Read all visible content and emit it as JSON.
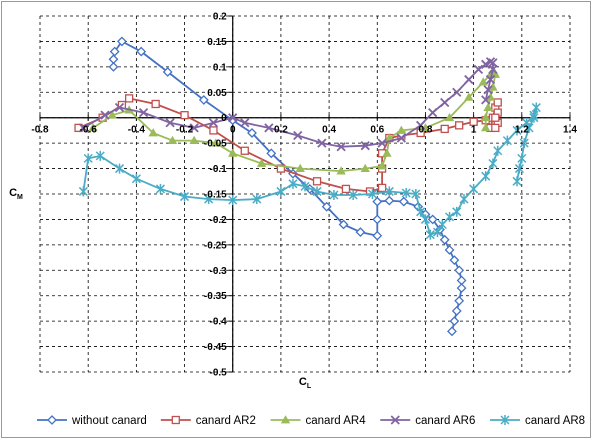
{
  "chart_data": {
    "type": "line",
    "xlabel": {
      "main": "C",
      "sub": "L"
    },
    "ylabel": {
      "main": "C",
      "sub": "M"
    },
    "xlim": [
      -0.8,
      1.4
    ],
    "ylim": [
      -0.5,
      0.2
    ],
    "x_ticks": [
      -0.8,
      -0.6,
      -0.4,
      -0.2,
      0,
      0.2,
      0.4,
      0.6,
      0.8,
      1,
      1.2,
      1.4
    ],
    "y_ticks": [
      0.2,
      0.15,
      0.1,
      0.05,
      0,
      -0.05,
      -0.1,
      -0.15,
      -0.2,
      -0.25,
      -0.3,
      -0.35,
      -0.4,
      -0.45,
      -0.5
    ],
    "x_tick_labels": [
      "-0.8",
      "-0.6",
      "-0.4",
      "-0.2",
      "0",
      "0.2",
      "0.4",
      "0.6",
      "0.8",
      "1",
      "1.2",
      "1.4"
    ],
    "y_tick_labels": [
      "0.2",
      "0.15",
      "0.1",
      "0.05",
      "0",
      "-0.05",
      "-0.1",
      "-0.15",
      "-0.2",
      "-0.25",
      "-0.3",
      "-0.35",
      "-0.4",
      "-0.45",
      "-0.5"
    ],
    "grid": "dashed",
    "legend_position": "bottom",
    "series": [
      {
        "name": "without canard",
        "color": "#4472C4",
        "marker": "diamond",
        "points": [
          [
            -0.495,
            0.1
          ],
          [
            -0.495,
            0.115
          ],
          [
            -0.49,
            0.13
          ],
          [
            -0.46,
            0.15
          ],
          [
            -0.38,
            0.13
          ],
          [
            -0.27,
            0.09
          ],
          [
            -0.12,
            0.035
          ],
          [
            0,
            -0.005
          ],
          [
            0.08,
            -0.03
          ],
          [
            0.16,
            -0.07
          ],
          [
            0.25,
            -0.11
          ],
          [
            0.32,
            -0.14
          ],
          [
            0.39,
            -0.175
          ],
          [
            0.46,
            -0.21
          ],
          [
            0.53,
            -0.225
          ],
          [
            0.6,
            -0.232
          ],
          [
            0.6,
            -0.2
          ],
          [
            0.6,
            -0.165
          ],
          [
            0.65,
            -0.163
          ],
          [
            0.71,
            -0.165
          ],
          [
            0.77,
            -0.175
          ],
          [
            0.8,
            -0.19
          ],
          [
            0.83,
            -0.2
          ],
          [
            0.86,
            -0.22
          ],
          [
            0.88,
            -0.24
          ],
          [
            0.9,
            -0.26
          ],
          [
            0.92,
            -0.28
          ],
          [
            0.94,
            -0.3
          ],
          [
            0.95,
            -0.32
          ],
          [
            0.95,
            -0.335
          ],
          [
            0.94,
            -0.36
          ],
          [
            0.93,
            -0.38
          ],
          [
            0.92,
            -0.4
          ],
          [
            0.91,
            -0.42
          ]
        ]
      },
      {
        "name": "canard AR2",
        "color": "#C0504D",
        "marker": "square",
        "points": [
          [
            -0.64,
            -0.02
          ],
          [
            -0.54,
            0.0
          ],
          [
            -0.46,
            0.025
          ],
          [
            -0.43,
            0.038
          ],
          [
            -0.32,
            0.027
          ],
          [
            -0.2,
            0.005
          ],
          [
            -0.08,
            -0.025
          ],
          [
            0.05,
            -0.065
          ],
          [
            0.2,
            -0.1
          ],
          [
            0.35,
            -0.125
          ],
          [
            0.47,
            -0.14
          ],
          [
            0.57,
            -0.145
          ],
          [
            0.62,
            -0.138
          ],
          [
            0.62,
            -0.1
          ],
          [
            0.62,
            -0.07
          ],
          [
            0.65,
            -0.04
          ],
          [
            0.7,
            -0.035
          ],
          [
            0.78,
            -0.03
          ],
          [
            0.88,
            -0.022
          ],
          [
            0.94,
            -0.015
          ],
          [
            1.0,
            -0.008
          ],
          [
            1.05,
            -0.005
          ],
          [
            1.07,
            -0.02
          ],
          [
            1.08,
            0.0
          ],
          [
            1.09,
            0.02
          ],
          [
            1.1,
            0.03
          ],
          [
            1.1,
            0.01
          ],
          [
            1.1,
            -0.01
          ],
          [
            1.09,
            -0.02
          ],
          [
            1.09,
            0.0
          ]
        ]
      },
      {
        "name": "canard AR4",
        "color": "#9BBB59",
        "marker": "triangle",
        "points": [
          [
            -0.58,
            -0.02
          ],
          [
            -0.5,
            0.005
          ],
          [
            -0.43,
            0.015
          ],
          [
            -0.33,
            -0.03
          ],
          [
            -0.25,
            -0.045
          ],
          [
            -0.16,
            -0.045
          ],
          [
            -0.07,
            -0.05
          ],
          [
            0.0,
            -0.07
          ],
          [
            0.12,
            -0.09
          ],
          [
            0.28,
            -0.1
          ],
          [
            0.45,
            -0.105
          ],
          [
            0.55,
            -0.1
          ],
          [
            0.62,
            -0.095
          ],
          [
            0.64,
            -0.07
          ],
          [
            0.65,
            -0.04
          ],
          [
            0.7,
            -0.025
          ],
          [
            0.8,
            -0.02
          ],
          [
            0.9,
            0.0
          ],
          [
            0.98,
            0.04
          ],
          [
            1.04,
            0.07
          ],
          [
            1.07,
            0.085
          ],
          [
            1.085,
            0.09
          ],
          [
            1.09,
            0.085
          ],
          [
            1.08,
            0.06
          ],
          [
            1.07,
            0.04
          ],
          [
            1.06,
            0.02
          ],
          [
            1.05,
            0.0
          ],
          [
            1.05,
            -0.02
          ]
        ]
      },
      {
        "name": "canard AR6",
        "color": "#8064A2",
        "marker": "x",
        "points": [
          [
            -0.62,
            -0.02
          ],
          [
            -0.53,
            0.005
          ],
          [
            -0.47,
            0.02
          ],
          [
            -0.37,
            0.01
          ],
          [
            -0.26,
            -0.01
          ],
          [
            -0.16,
            -0.02
          ],
          [
            -0.08,
            -0.01
          ],
          [
            0.0,
            0.0
          ],
          [
            0.05,
            -0.01
          ],
          [
            0.15,
            -0.02
          ],
          [
            0.27,
            -0.035
          ],
          [
            0.37,
            -0.05
          ],
          [
            0.45,
            -0.057
          ],
          [
            0.55,
            -0.055
          ],
          [
            0.62,
            -0.05
          ],
          [
            0.7,
            -0.04
          ],
          [
            0.78,
            -0.015
          ],
          [
            0.83,
            0.01
          ],
          [
            0.88,
            0.03
          ],
          [
            0.93,
            0.05
          ],
          [
            0.98,
            0.075
          ],
          [
            1.02,
            0.095
          ],
          [
            1.05,
            0.105
          ],
          [
            1.07,
            0.11
          ],
          [
            1.08,
            0.108
          ],
          [
            1.08,
            0.095
          ],
          [
            1.07,
            0.075
          ],
          [
            1.06,
            0.055
          ],
          [
            1.05,
            0.035
          ]
        ]
      },
      {
        "name": "canard AR8",
        "color": "#4BACC6",
        "marker": "star",
        "points": [
          [
            -0.62,
            -0.145
          ],
          [
            -0.6,
            -0.08
          ],
          [
            -0.55,
            -0.075
          ],
          [
            -0.47,
            -0.1
          ],
          [
            -0.4,
            -0.12
          ],
          [
            -0.3,
            -0.14
          ],
          [
            -0.2,
            -0.155
          ],
          [
            -0.1,
            -0.16
          ],
          [
            0.0,
            -0.162
          ],
          [
            0.1,
            -0.16
          ],
          [
            0.2,
            -0.145
          ],
          [
            0.25,
            -0.13
          ],
          [
            0.3,
            -0.135
          ],
          [
            0.35,
            -0.145
          ],
          [
            0.42,
            -0.152
          ],
          [
            0.5,
            -0.152
          ],
          [
            0.58,
            -0.15
          ],
          [
            0.65,
            -0.145
          ],
          [
            0.72,
            -0.148
          ],
          [
            0.76,
            -0.15
          ],
          [
            0.78,
            -0.185
          ],
          [
            0.8,
            -0.2
          ],
          [
            0.82,
            -0.23
          ],
          [
            0.85,
            -0.225
          ],
          [
            0.87,
            -0.21
          ],
          [
            0.9,
            -0.195
          ],
          [
            0.93,
            -0.185
          ],
          [
            0.96,
            -0.16
          ],
          [
            1.0,
            -0.14
          ],
          [
            1.05,
            -0.115
          ],
          [
            1.08,
            -0.09
          ],
          [
            1.1,
            -0.065
          ],
          [
            1.14,
            -0.045
          ],
          [
            1.18,
            -0.025
          ],
          [
            1.22,
            -0.01
          ],
          [
            1.25,
            0.005
          ],
          [
            1.26,
            0.02
          ],
          [
            1.25,
            0.0
          ],
          [
            1.23,
            -0.02
          ],
          [
            1.21,
            -0.05
          ],
          [
            1.2,
            -0.08
          ],
          [
            1.19,
            -0.1
          ],
          [
            1.18,
            -0.125
          ]
        ]
      }
    ]
  }
}
